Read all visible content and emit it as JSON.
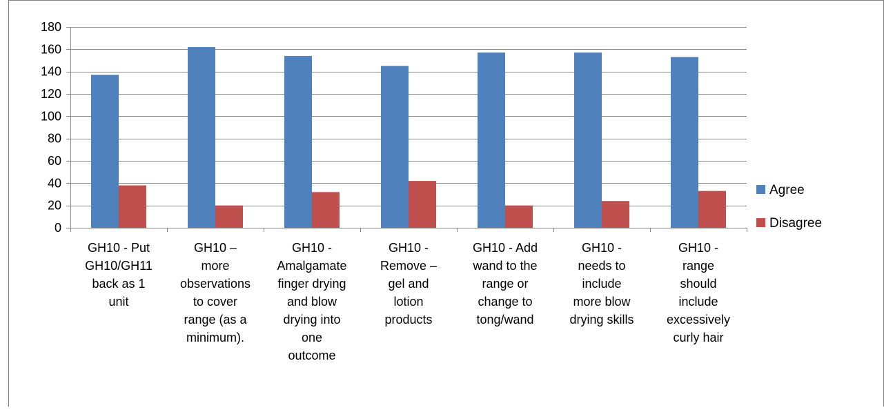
{
  "chart_data": {
    "type": "bar",
    "title": "",
    "xlabel": "",
    "ylabel": "",
    "ylim": [
      0,
      180
    ],
    "yticks": [
      0,
      20,
      40,
      60,
      80,
      100,
      120,
      140,
      160,
      180
    ],
    "grid": true,
    "legend_position": "right",
    "categories": [
      [
        "GH10 -  Put",
        "GH10/GH11",
        "back as 1",
        "unit"
      ],
      [
        "GH10 –",
        "more",
        "observations",
        "to cover",
        "range (as a",
        "minimum)."
      ],
      [
        "GH10 -",
        "Amalgamate",
        "finger drying",
        "and blow",
        "drying into",
        "one",
        "outcome"
      ],
      [
        "GH10 -",
        "Remove –",
        "gel and",
        "lotion",
        "products"
      ],
      [
        "GH10 -  Add",
        "wand to the",
        "range or",
        "change to",
        "tong/wand"
      ],
      [
        "GH10 -",
        "needs to",
        "include",
        "more blow",
        "drying skills"
      ],
      [
        "GH10 -",
        "range",
        "should",
        "include",
        "excessively",
        "curly hair"
      ]
    ],
    "series": [
      {
        "name": "Agree",
        "color": "#4F81BD",
        "values": [
          137,
          162,
          154,
          145,
          157,
          157,
          153
        ]
      },
      {
        "name": "Disagree",
        "color": "#C0504D",
        "values": [
          38,
          20,
          32,
          42,
          20,
          24,
          33
        ]
      }
    ]
  }
}
